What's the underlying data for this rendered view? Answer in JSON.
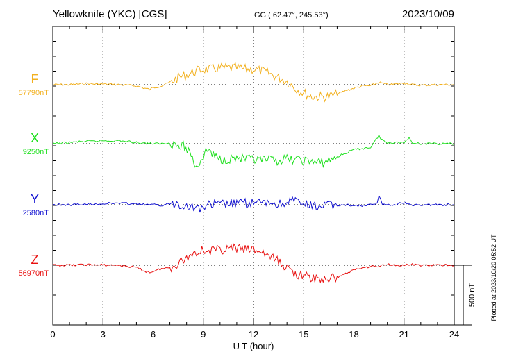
{
  "header": {
    "station": "Yellowknife (YKC)  [CGS]",
    "coords": "GG ( 62.47°, 245.53°)",
    "date": "2023/10/09"
  },
  "footer": {
    "plotted": "Plotted at 2023/10/20 05:52 UT"
  },
  "chart_data": {
    "type": "line",
    "xlabel": "U T (hour)",
    "xlim": [
      0,
      24
    ],
    "xticks": [
      "0",
      "3",
      "6",
      "9",
      "12",
      "15",
      "18",
      "21",
      "24"
    ],
    "scale_bar": {
      "label": "500 nT",
      "value": 500
    },
    "colors": {
      "F": "#f2b01e",
      "X": "#1fe01f",
      "Y": "#1010d0",
      "Z": "#e81010"
    },
    "series": [
      {
        "name": "F",
        "baseline_label": "57790nT",
        "baseline": 57790,
        "x": [
          0,
          1,
          2,
          2.5,
          3,
          4,
          5,
          5.5,
          5.8,
          6,
          6.5,
          7,
          7.5,
          8,
          8.5,
          9,
          9.5,
          10,
          10.5,
          11,
          11.5,
          12,
          12.5,
          13,
          13.5,
          14,
          14.5,
          15,
          15.5,
          16,
          16.5,
          17,
          17.5,
          18,
          18.5,
          19,
          19.5,
          20,
          20.5,
          21,
          21.5,
          22,
          23,
          24
        ],
        "y": [
          57790,
          57790,
          57800,
          57795,
          57795,
          57790,
          57780,
          57760,
          57750,
          57765,
          57780,
          57810,
          57850,
          57870,
          57900,
          57920,
          57920,
          57930,
          57930,
          57930,
          57920,
          57920,
          57905,
          57880,
          57850,
          57820,
          57760,
          57720,
          57690,
          57690,
          57690,
          57710,
          57740,
          57760,
          57780,
          57780,
          57810,
          57790,
          57795,
          57805,
          57790,
          57785,
          57790,
          57790
        ]
      },
      {
        "name": "X",
        "baseline_label": "9250nT",
        "baseline": 9250,
        "x": [
          0,
          1,
          2,
          2.5,
          3,
          3.5,
          4,
          5,
          6,
          6.5,
          7,
          7.3,
          7.5,
          7.8,
          8.2,
          8.5,
          8.7,
          9,
          9.3,
          9.6,
          10,
          11,
          12,
          13,
          13.5,
          14,
          15,
          15.5,
          16,
          16.5,
          17,
          17.5,
          18,
          18.5,
          19,
          19.5,
          19.6,
          20,
          20.5,
          21,
          21.3,
          21.5,
          22,
          23,
          24
        ],
        "y": [
          9250,
          9260,
          9270,
          9270,
          9275,
          9275,
          9275,
          9260,
          9250,
          9250,
          9255,
          9255,
          9220,
          9230,
          9180,
          9080,
          9070,
          9150,
          9210,
          9150,
          9120,
          9130,
          9110,
          9110,
          9110,
          9120,
          9110,
          9100,
          9090,
          9110,
          9140,
          9170,
          9200,
          9210,
          9220,
          9320,
          9290,
          9260,
          9260,
          9260,
          9300,
          9260,
          9250,
          9250,
          9250
        ]
      },
      {
        "name": "Y",
        "baseline_label": "2580nT",
        "baseline": 2580,
        "x": [
          0,
          1,
          2,
          3,
          4,
          5,
          6,
          6.5,
          7,
          7.5,
          8,
          8.5,
          8.8,
          9,
          9.5,
          10,
          11,
          12,
          12.5,
          13,
          13.5,
          14,
          14.5,
          15,
          15.5,
          16,
          16.5,
          17,
          17.5,
          18,
          18.5,
          19,
          19.4,
          19.5,
          19.7,
          20,
          20.5,
          21,
          21.5,
          22,
          23,
          24
        ],
        "y": [
          2580,
          2580,
          2585,
          2590,
          2595,
          2585,
          2580,
          2575,
          2590,
          2590,
          2575,
          2560,
          2540,
          2570,
          2580,
          2585,
          2590,
          2595,
          2590,
          2600,
          2580,
          2610,
          2610,
          2580,
          2570,
          2570,
          2575,
          2575,
          2580,
          2575,
          2570,
          2580,
          2590,
          2660,
          2590,
          2580,
          2580,
          2600,
          2575,
          2580,
          2580,
          2580
        ]
      },
      {
        "name": "Z",
        "baseline_label": "56970nT",
        "baseline": 56970,
        "x": [
          0,
          1,
          2,
          3,
          4,
          5,
          5.5,
          5.8,
          6,
          6.5,
          7,
          7.5,
          8,
          8.5,
          9,
          9.5,
          10,
          10.5,
          11,
          11.5,
          12,
          12.5,
          13,
          13.5,
          14,
          14.5,
          15,
          15.5,
          16,
          16.5,
          17,
          17.5,
          18,
          18.5,
          19,
          19.5,
          20,
          20.5,
          21,
          21.5,
          22,
          23,
          24
        ],
        "y": [
          56970,
          56970,
          56975,
          56970,
          56970,
          56950,
          56920,
          56910,
          56920,
          56940,
          56950,
          56990,
          57030,
          57080,
          57100,
          57090,
          57100,
          57110,
          57110,
          57100,
          57100,
          57080,
          57040,
          57000,
          56950,
          56900,
          56880,
          56860,
          56850,
          56855,
          56870,
          56900,
          56930,
          56950,
          56960,
          56960,
          56980,
          56970,
          56970,
          56975,
          56970,
          56970,
          56970
        ]
      }
    ]
  }
}
